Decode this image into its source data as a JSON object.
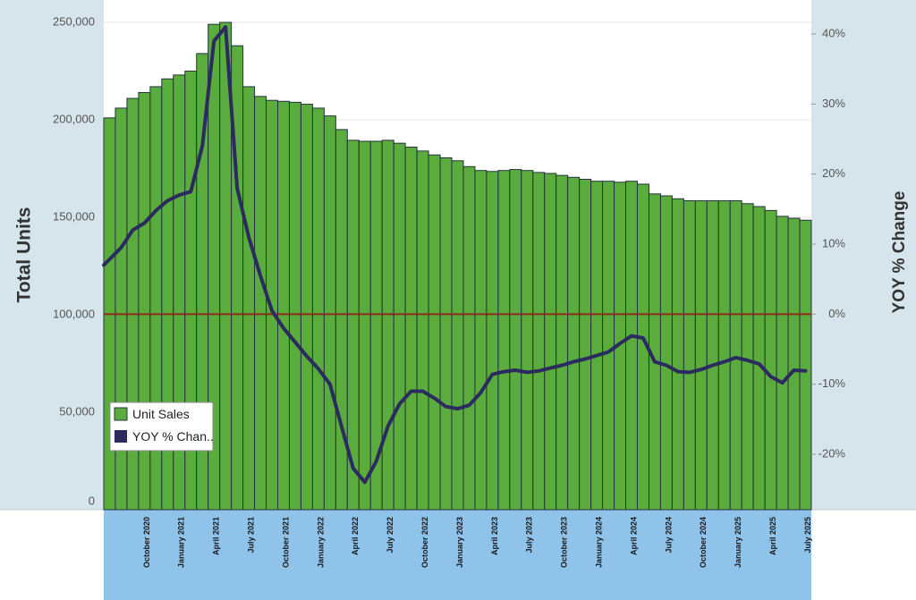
{
  "chart_data": {
    "type": "bar",
    "title": "",
    "ylabel": "Total Units",
    "y2label": "YOY % Change",
    "xlabel": "",
    "ylim": [
      0,
      250000
    ],
    "y2lim": [
      -25,
      40
    ],
    "grid": true,
    "legend_position": "bottom-left",
    "colors": {
      "bar_fill": "#5aad3c",
      "bar_stroke": "#25333d",
      "line": "#2b2b60",
      "zero_line": "#8b2a1c",
      "side_panel": "#d6e4ec",
      "x_axis_panel": "#8fc3ea",
      "axis_text": "#555555",
      "title_text": "#333333"
    },
    "y_ticks": [
      {
        "value": 0,
        "label": "0"
      },
      {
        "value": 50000,
        "label": "50,000"
      },
      {
        "value": 100000,
        "label": "100,000"
      },
      {
        "value": 150000,
        "label": "150,000"
      },
      {
        "value": 200000,
        "label": "200,000"
      },
      {
        "value": 250000,
        "label": "250,000"
      }
    ],
    "y2_ticks": [
      {
        "value": -20,
        "label": "-20%"
      },
      {
        "value": -10,
        "label": "-10%"
      },
      {
        "value": 0,
        "label": "0%"
      },
      {
        "value": 10,
        "label": "10%"
      },
      {
        "value": 20,
        "label": "20%"
      },
      {
        "value": 30,
        "label": "30%"
      },
      {
        "value": 40,
        "label": "40%"
      }
    ],
    "x_ticks": [
      {
        "index": 3,
        "label": "October 2020"
      },
      {
        "index": 6,
        "label": "January 2021"
      },
      {
        "index": 9,
        "label": "April 2021"
      },
      {
        "index": 12,
        "label": "July 2021"
      },
      {
        "index": 15,
        "label": "October 2021"
      },
      {
        "index": 18,
        "label": "January 2022"
      },
      {
        "index": 21,
        "label": "April 2022"
      },
      {
        "index": 24,
        "label": "July 2022"
      },
      {
        "index": 27,
        "label": "October 2022"
      },
      {
        "index": 30,
        "label": "January 2023"
      },
      {
        "index": 33,
        "label": "April 2023"
      },
      {
        "index": 36,
        "label": "July 2023"
      },
      {
        "index": 39,
        "label": "October 2023"
      },
      {
        "index": 42,
        "label": "January 2024"
      },
      {
        "index": 45,
        "label": "April 2024"
      },
      {
        "index": 48,
        "label": "July 2024"
      },
      {
        "index": 51,
        "label": "October 2024"
      },
      {
        "index": 54,
        "label": "January 2025"
      },
      {
        "index": 57,
        "label": "April 2025"
      },
      {
        "index": 60,
        "label": "July 2025"
      }
    ],
    "categories": [
      "2020-07",
      "2020-08",
      "2020-09",
      "2020-10",
      "2020-11",
      "2020-12",
      "2021-01",
      "2021-02",
      "2021-03",
      "2021-04",
      "2021-05",
      "2021-06",
      "2021-07",
      "2021-08",
      "2021-09",
      "2021-10",
      "2021-11",
      "2021-12",
      "2022-01",
      "2022-02",
      "2022-03",
      "2022-04",
      "2022-05",
      "2022-06",
      "2022-07",
      "2022-08",
      "2022-09",
      "2022-10",
      "2022-11",
      "2022-12",
      "2023-01",
      "2023-02",
      "2023-03",
      "2023-04",
      "2023-05",
      "2023-06",
      "2023-07",
      "2023-08",
      "2023-09",
      "2023-10",
      "2023-11",
      "2023-12",
      "2024-01",
      "2024-02",
      "2024-03",
      "2024-04",
      "2024-05",
      "2024-06",
      "2024-07",
      "2024-08",
      "2024-09",
      "2024-10",
      "2024-11",
      "2024-12",
      "2025-01",
      "2025-02",
      "2025-03",
      "2025-04",
      "2025-05",
      "2025-06",
      "2025-07"
    ],
    "series": [
      {
        "name": "Unit Sales",
        "type": "bar",
        "axis": "left",
        "values": [
          201000,
          206000,
          211000,
          214000,
          217000,
          221000,
          223000,
          225000,
          234000,
          249000,
          250000,
          238000,
          217000,
          212000,
          210000,
          209500,
          209000,
          208000,
          206000,
          202000,
          195000,
          189500,
          189000,
          189000,
          189500,
          188000,
          186000,
          184000,
          182000,
          180500,
          179000,
          176000,
          174000,
          173500,
          174000,
          174500,
          174000,
          173000,
          172500,
          171500,
          170500,
          169500,
          168500,
          168500,
          168000,
          168500,
          167000,
          162000,
          161000,
          159500,
          158500,
          158500,
          158500,
          158500,
          158500,
          157000,
          155500,
          153500,
          150500,
          149500,
          148500
        ]
      },
      {
        "name": "YOY % Chan..",
        "type": "line",
        "axis": "right",
        "values": [
          7,
          9.5,
          12,
          13,
          14.8,
          16.2,
          17,
          17.5,
          24,
          39,
          41,
          18,
          11,
          5.5,
          0.5,
          -2,
          -4,
          -6,
          -7.8,
          -10,
          -16,
          -22,
          -24,
          -21,
          -16,
          -12.8,
          -11,
          -11,
          -12,
          -13.2,
          -13.5,
          -13,
          -11.2,
          -8.6,
          -8.2,
          -8,
          -8.3,
          -8.1,
          -7.7,
          -7.3,
          -6.8,
          -6.4,
          -5.9,
          -5.4,
          -4.2,
          -3.1,
          -3.4,
          -6.8,
          -7.3,
          -8.2,
          -8.3,
          -7.9,
          -7.3,
          -6.8,
          -6.2,
          -6.6,
          -7.1,
          -8.9,
          -9.8,
          -8,
          -8.1
        ]
      }
    ]
  }
}
